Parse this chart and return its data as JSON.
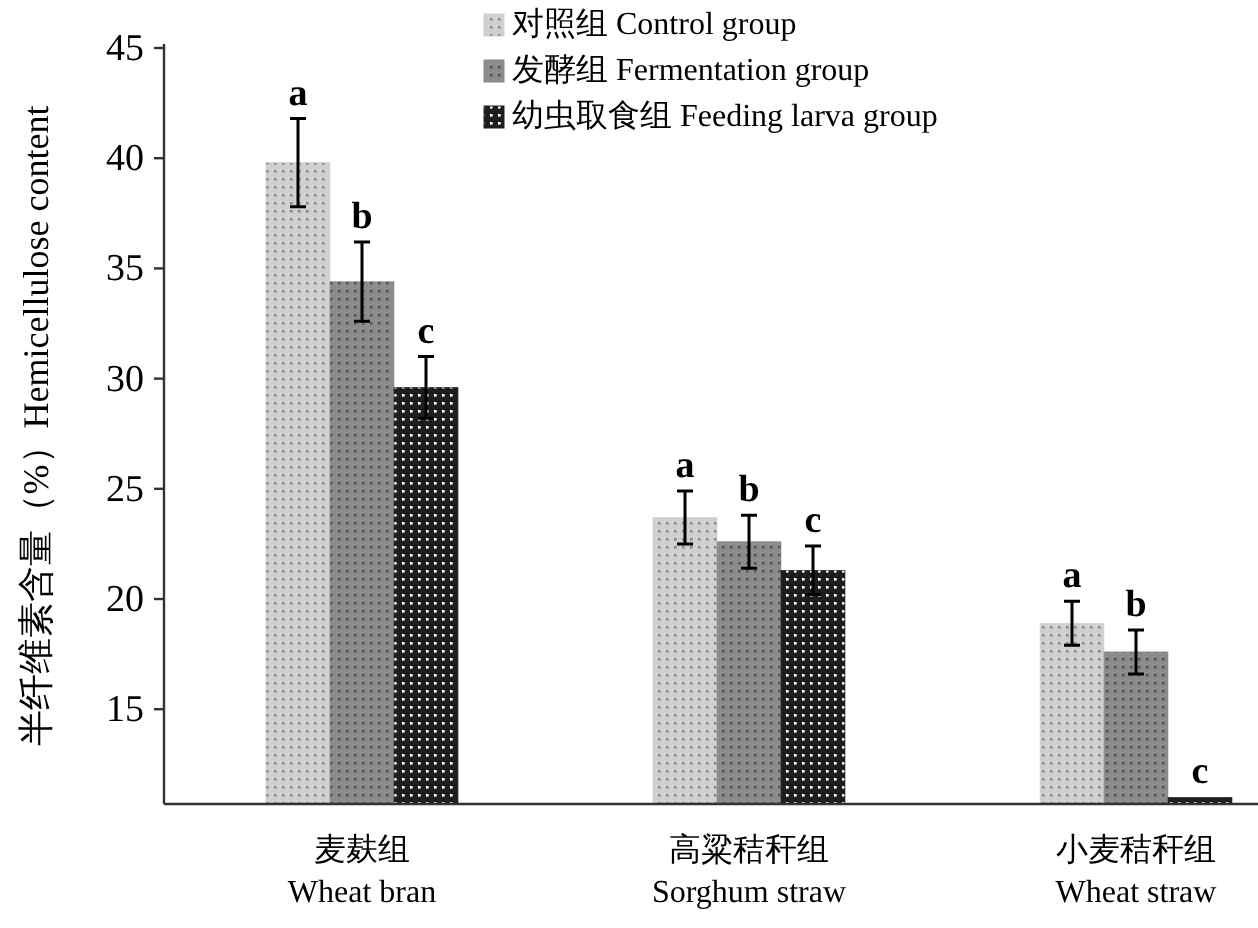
{
  "chart_data": {
    "type": "bar",
    "ylabel": "半纤维素含量（%）Hemicellulose content",
    "categories": [
      "麦麸组\nWheat bran",
      "高粱秸秆组\nSorghum straw",
      "小麦秸秆组\nWheat straw"
    ],
    "series": [
      {
        "name": "对照组 Control group",
        "color": "#d0d0d0",
        "values": [
          39.8,
          23.7,
          18.9
        ],
        "errors": [
          2.0,
          1.2,
          1.0
        ],
        "value_labels": [
          "a",
          "a",
          "a"
        ]
      },
      {
        "name": "发酵组 Fermentation group",
        "color": "#8c8c8c",
        "values": [
          34.4,
          22.6,
          17.6
        ],
        "errors": [
          1.8,
          1.2,
          1.0
        ],
        "value_labels": [
          "b",
          "b",
          "b"
        ]
      },
      {
        "name": "幼虫取食组 Feeding larva group",
        "color": "#1e1e1e",
        "values": [
          29.6,
          21.3,
          11.0
        ],
        "errors": [
          1.4,
          1.1,
          null
        ],
        "value_labels": [
          "c",
          "c",
          "c"
        ]
      }
    ],
    "ylim": [
      10.7,
      45
    ],
    "yticks": [
      15,
      20,
      25,
      30,
      35,
      40,
      45
    ],
    "grid": false,
    "legend": "top right"
  }
}
